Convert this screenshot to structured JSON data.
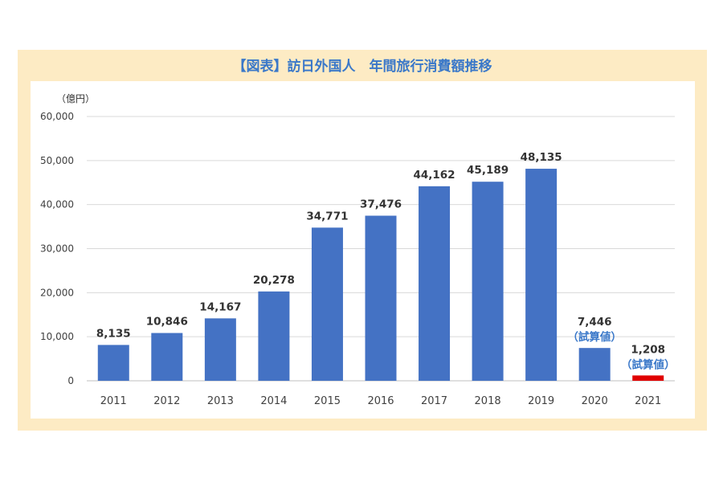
{
  "chart_data": {
    "type": "bar",
    "title": "【図表】訪日外国人　年間旅行消費額推移",
    "ylabel": "（億円）",
    "categories": [
      "2011",
      "2012",
      "2013",
      "2014",
      "2015",
      "2016",
      "2017",
      "2018",
      "2019",
      "2020",
      "2021"
    ],
    "values": [
      8135,
      10846,
      14167,
      20278,
      34771,
      37476,
      44162,
      45189,
      48135,
      7446,
      1208
    ],
    "value_labels": [
      "8,135",
      "10,846",
      "14,167",
      "20,278",
      "34,771",
      "37,476",
      "44,162",
      "45,189",
      "48,135",
      "7,446",
      "1,208"
    ],
    "annotations": [
      "",
      "",
      "",
      "",
      "",
      "",
      "",
      "",
      "",
      "（試算値）",
      "（試算値）"
    ],
    "ylim": [
      0,
      60000
    ],
    "yticks": [
      0,
      10000,
      20000,
      30000,
      40000,
      50000,
      60000
    ],
    "ytick_labels": [
      "0",
      "10,000",
      "20,000",
      "30,000",
      "40,000",
      "50,000",
      "60,000"
    ],
    "grid": true,
    "colors": [
      "#4472c4",
      "#4472c4",
      "#4472c4",
      "#4472c4",
      "#4472c4",
      "#4472c4",
      "#4472c4",
      "#4472c4",
      "#4472c4",
      "#4472c4",
      "#e00000"
    ]
  }
}
